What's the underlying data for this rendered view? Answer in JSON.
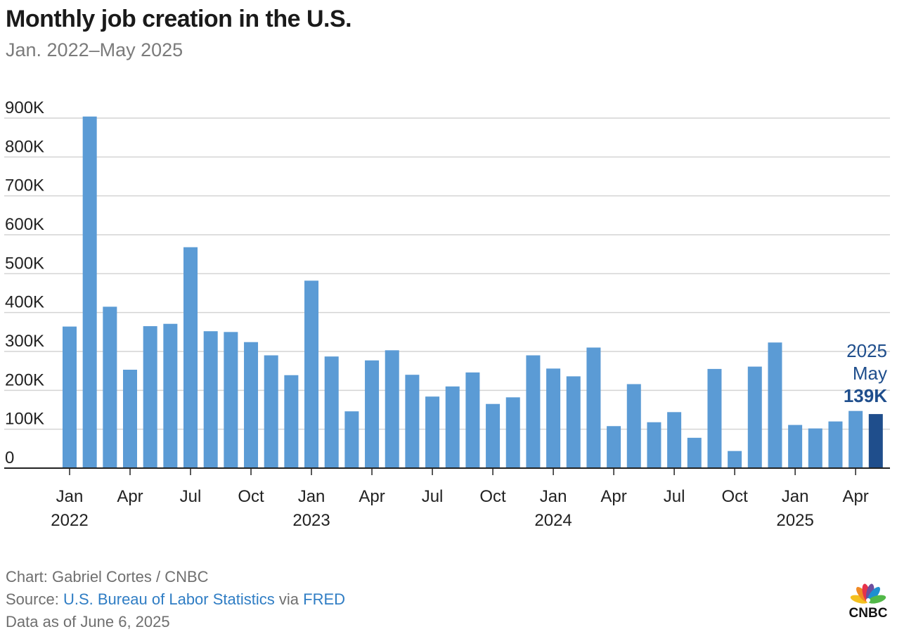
{
  "title": "Monthly job creation in the U.S.",
  "subtitle": "Jan. 2022–May 2025",
  "footer": {
    "chart_credit": "Chart: Gabriel Cortes / CNBC",
    "source_prefix": "Source: ",
    "source_link_1": "U.S. Bureau of Labor Statistics",
    "source_via": " via ",
    "source_link_2": "FRED",
    "data_date": "Data as of June 6, 2025"
  },
  "logo": {
    "text": "CNBC",
    "colors": [
      "#f4c01e",
      "#f08a24",
      "#e6324b",
      "#6e4e9e",
      "#1e8fd0",
      "#52b848"
    ]
  },
  "colors": {
    "bar": "#5b9bd5",
    "highlight": "#1f4e8c",
    "grid": "#d4d4d4",
    "axis": "#222222"
  },
  "chart_data": {
    "type": "bar",
    "categories": [
      "Jan 2022",
      "Feb 2022",
      "Mar 2022",
      "Apr 2022",
      "May 2022",
      "Jun 2022",
      "Jul 2022",
      "Aug 2022",
      "Sep 2022",
      "Oct 2022",
      "Nov 2022",
      "Dec 2022",
      "Jan 2023",
      "Feb 2023",
      "Mar 2023",
      "Apr 2023",
      "May 2023",
      "Jun 2023",
      "Jul 2023",
      "Aug 2023",
      "Sep 2023",
      "Oct 2023",
      "Nov 2023",
      "Dec 2023",
      "Jan 2024",
      "Feb 2024",
      "Mar 2024",
      "Apr 2024",
      "May 2024",
      "Jun 2024",
      "Jul 2024",
      "Aug 2024",
      "Sep 2024",
      "Oct 2024",
      "Nov 2024",
      "Dec 2024",
      "Jan 2025",
      "Feb 2025",
      "Mar 2025",
      "Apr 2025",
      "May 2025"
    ],
    "values": [
      364,
      904,
      415,
      253,
      365,
      371,
      568,
      352,
      350,
      324,
      290,
      239,
      482,
      287,
      146,
      277,
      303,
      240,
      184,
      210,
      246,
      165,
      182,
      290,
      256,
      236,
      310,
      108,
      216,
      118,
      144,
      78,
      255,
      44,
      261,
      323,
      111,
      102,
      120,
      147,
      139
    ],
    "unit": "K",
    "ylim": [
      0,
      900
    ],
    "yticks": [
      "0",
      "100K",
      "200K",
      "300K",
      "400K",
      "500K",
      "600K",
      "700K",
      "800K",
      "900K"
    ],
    "xtick_labels": [
      {
        "index": 0,
        "month": "Jan",
        "year": "2022"
      },
      {
        "index": 3,
        "month": "Apr",
        "year": ""
      },
      {
        "index": 6,
        "month": "Jul",
        "year": ""
      },
      {
        "index": 9,
        "month": "Oct",
        "year": ""
      },
      {
        "index": 12,
        "month": "Jan",
        "year": "2023"
      },
      {
        "index": 15,
        "month": "Apr",
        "year": ""
      },
      {
        "index": 18,
        "month": "Jul",
        "year": ""
      },
      {
        "index": 21,
        "month": "Oct",
        "year": ""
      },
      {
        "index": 24,
        "month": "Jan",
        "year": "2024"
      },
      {
        "index": 27,
        "month": "Apr",
        "year": ""
      },
      {
        "index": 30,
        "month": "Jul",
        "year": ""
      },
      {
        "index": 33,
        "month": "Oct",
        "year": ""
      },
      {
        "index": 36,
        "month": "Jan",
        "year": "2025"
      },
      {
        "index": 39,
        "month": "Apr",
        "year": ""
      }
    ],
    "highlight_index": 40,
    "annotation": {
      "year": "2025",
      "month": "May",
      "value": "139K"
    },
    "grid": true
  }
}
